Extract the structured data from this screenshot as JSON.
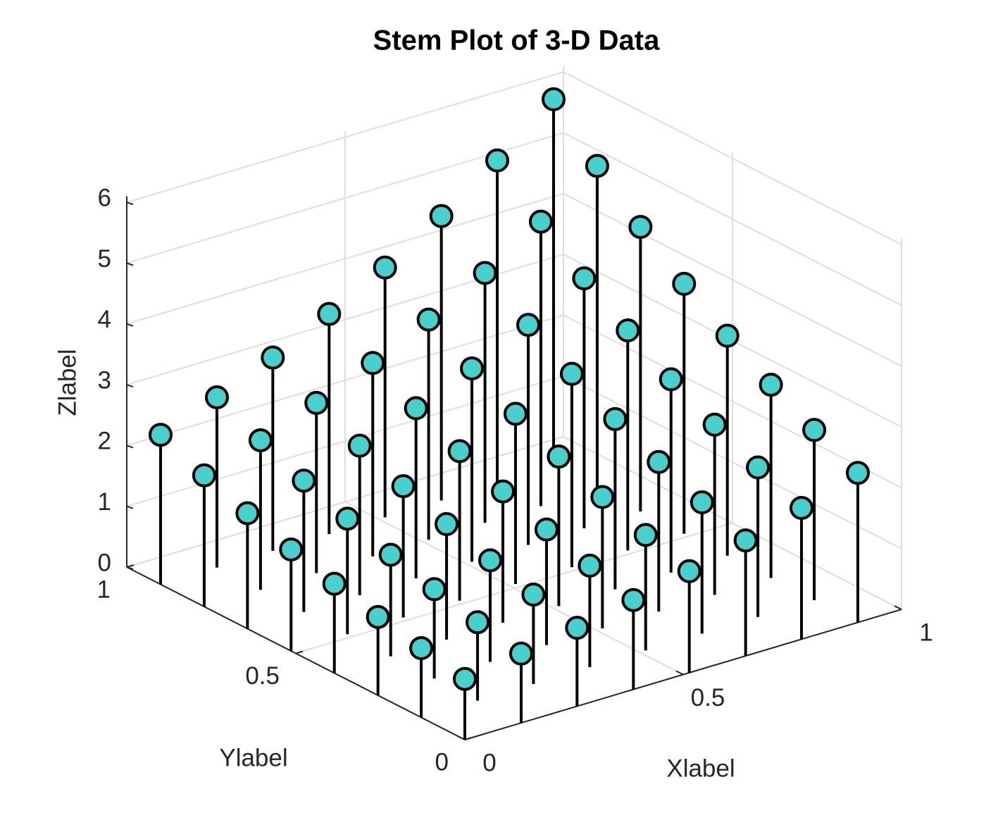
{
  "chart_data": {
    "type": "stem3",
    "title": "Stem Plot of 3-D Data",
    "x_label": "Xlabel",
    "y_label": "Ylabel",
    "z_label": "Zlabel",
    "color": "#48d1cc",
    "edge_color": "#000000",
    "xlim": [
      0,
      1
    ],
    "ylim": [
      0,
      1
    ],
    "zlim": [
      0,
      6.1
    ],
    "xticks": [
      0,
      0.5,
      1
    ],
    "yticks": [
      0,
      0.5,
      1
    ],
    "zticks": [
      0,
      1,
      2,
      3,
      4,
      5,
      6
    ],
    "grid": true,
    "x": [
      0,
      0,
      0,
      0,
      0,
      0,
      0,
      0,
      0.129,
      0.129,
      0.129,
      0.129,
      0.129,
      0.129,
      0.129,
      0.129,
      0.257,
      0.257,
      0.257,
      0.257,
      0.257,
      0.257,
      0.257,
      0.257,
      0.386,
      0.386,
      0.386,
      0.386,
      0.386,
      0.386,
      0.386,
      0.386,
      0.514,
      0.514,
      0.514,
      0.514,
      0.514,
      0.514,
      0.514,
      0.514,
      0.643,
      0.643,
      0.643,
      0.643,
      0.643,
      0.643,
      0.643,
      0.643,
      0.771,
      0.771,
      0.771,
      0.771,
      0.771,
      0.771,
      0.771,
      0.771,
      0.9,
      0.9,
      0.9,
      0.9,
      0.9,
      0.9,
      0.9,
      0.9
    ],
    "y": [
      0,
      0.129,
      0.257,
      0.386,
      0.514,
      0.643,
      0.771,
      0.9,
      0,
      0.129,
      0.257,
      0.386,
      0.514,
      0.643,
      0.771,
      0.9,
      0,
      0.129,
      0.257,
      0.386,
      0.514,
      0.643,
      0.771,
      0.9,
      0,
      0.129,
      0.257,
      0.386,
      0.514,
      0.643,
      0.771,
      0.9,
      0,
      0.129,
      0.257,
      0.386,
      0.514,
      0.643,
      0.771,
      0.9,
      0,
      0.129,
      0.257,
      0.386,
      0.514,
      0.643,
      0.771,
      0.9,
      0,
      0.129,
      0.257,
      0.386,
      0.514,
      0.643,
      0.771,
      0.9,
      0,
      0.129,
      0.257,
      0.386,
      0.514,
      0.643,
      0.771,
      0.9
    ],
    "values": [
      1.0,
      1.14,
      1.29,
      1.47,
      1.67,
      1.9,
      2.16,
      2.46,
      1.14,
      1.29,
      1.47,
      1.67,
      1.9,
      2.16,
      2.46,
      2.8,
      1.29,
      1.47,
      1.67,
      1.9,
      2.16,
      2.46,
      2.8,
      3.18,
      1.47,
      1.67,
      1.9,
      2.16,
      2.46,
      2.8,
      3.18,
      3.62,
      1.67,
      1.9,
      2.16,
      2.46,
      2.8,
      3.18,
      3.62,
      4.11,
      1.9,
      2.16,
      2.46,
      2.8,
      3.18,
      3.62,
      4.11,
      4.68,
      2.16,
      2.46,
      2.8,
      3.18,
      3.62,
      4.11,
      4.68,
      5.32,
      2.46,
      2.8,
      3.18,
      3.62,
      4.11,
      4.68,
      5.32,
      6.05
    ]
  }
}
